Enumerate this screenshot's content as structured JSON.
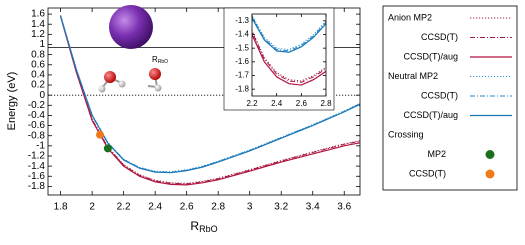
{
  "chart_data": {
    "type": "line",
    "ylabel": "Energy (eV)",
    "xlabel": {
      "text": "R",
      "sub": "RbO"
    },
    "annotation": {
      "text": "R",
      "sub": "RbO"
    },
    "xlim": [
      1.72,
      3.7
    ],
    "ylim": [
      -1.97,
      1.72
    ],
    "xticks": [
      1.8,
      2,
      2.2,
      2.4,
      2.6,
      2.8,
      3,
      3.2,
      3.4,
      3.6
    ],
    "yticks": [
      1.6,
      1.4,
      1.2,
      1,
      0.8,
      0.6,
      0.4,
      0.2,
      0,
      -0.2,
      -0.4,
      -0.6,
      -0.8,
      -1,
      -1.2,
      -1.4,
      -1.6,
      -1.8
    ],
    "hlines": [
      {
        "y": 0.94,
        "style": "solid"
      },
      {
        "y": 0,
        "style": "dotted"
      }
    ],
    "x": [
      1.8,
      1.9,
      2.0,
      2.1,
      2.2,
      2.3,
      2.4,
      2.5,
      2.6,
      2.7,
      2.8,
      3.0,
      3.2,
      3.4,
      3.6,
      3.7
    ],
    "series": [
      {
        "name": "Anion MP2",
        "color": "#9e1b3f",
        "style": "dotted",
        "values": [
          1.57,
          0.48,
          -0.47,
          -1.02,
          -1.37,
          -1.57,
          -1.68,
          -1.73,
          -1.74,
          -1.7,
          -1.64,
          -1.47,
          -1.29,
          -1.12,
          -0.96,
          -0.9
        ]
      },
      {
        "name": "CCSD(T)",
        "color": "#9e1b3f",
        "style": "dashdot",
        "values": [
          1.56,
          0.47,
          -0.48,
          -1.03,
          -1.38,
          -1.58,
          -1.69,
          -1.74,
          -1.75,
          -1.71,
          -1.65,
          -1.48,
          -1.3,
          -1.13,
          -0.97,
          -0.91
        ]
      },
      {
        "name": "CCSD(T)/aug",
        "color": "#b3123f",
        "style": "solid",
        "values": [
          1.55,
          0.45,
          -0.5,
          -1.05,
          -1.4,
          -1.6,
          -1.71,
          -1.76,
          -1.77,
          -1.73,
          -1.67,
          -1.5,
          -1.32,
          -1.16,
          -1.0,
          -0.94
        ]
      },
      {
        "name": "Neutral MP2",
        "color": "#3a9ad8",
        "style": "dotted",
        "values": [
          1.58,
          0.52,
          -0.38,
          -0.93,
          -1.26,
          -1.42,
          -1.5,
          -1.51,
          -1.47,
          -1.4,
          -1.3,
          -1.08,
          -0.83,
          -0.58,
          -0.31,
          -0.16
        ]
      },
      {
        "name": "CCSD(T)",
        "color": "#2a86c4",
        "style": "dashdot",
        "values": [
          1.57,
          0.51,
          -0.39,
          -0.94,
          -1.27,
          -1.43,
          -1.51,
          -1.52,
          -1.48,
          -1.41,
          -1.31,
          -1.09,
          -0.84,
          -0.59,
          -0.32,
          -0.17
        ]
      },
      {
        "name": "CCSD(T)/aug",
        "color": "#1a78b8",
        "style": "solid",
        "values": [
          1.56,
          0.5,
          -0.4,
          -0.95,
          -1.28,
          -1.44,
          -1.52,
          -1.53,
          -1.49,
          -1.42,
          -1.32,
          -1.1,
          -0.85,
          -0.6,
          -0.33,
          -0.18
        ]
      }
    ],
    "crossing": {
      "title": "Crossing",
      "points": [
        {
          "name": "MP2",
          "color": "#1b6e1b",
          "x": 2.1,
          "y": -1.05
        },
        {
          "name": "CCSD(T)",
          "color": "#f07a1a",
          "x": 2.05,
          "y": -0.78
        }
      ]
    },
    "inset": {
      "xlim": [
        2.2,
        2.8
      ],
      "ylim": [
        -1.85,
        -1.25
      ],
      "xticks": [
        2.2,
        2.4,
        2.6,
        2.8
      ],
      "yticks": [
        -1.3,
        -1.4,
        -1.5,
        -1.6,
        -1.7,
        -1.8
      ]
    }
  }
}
